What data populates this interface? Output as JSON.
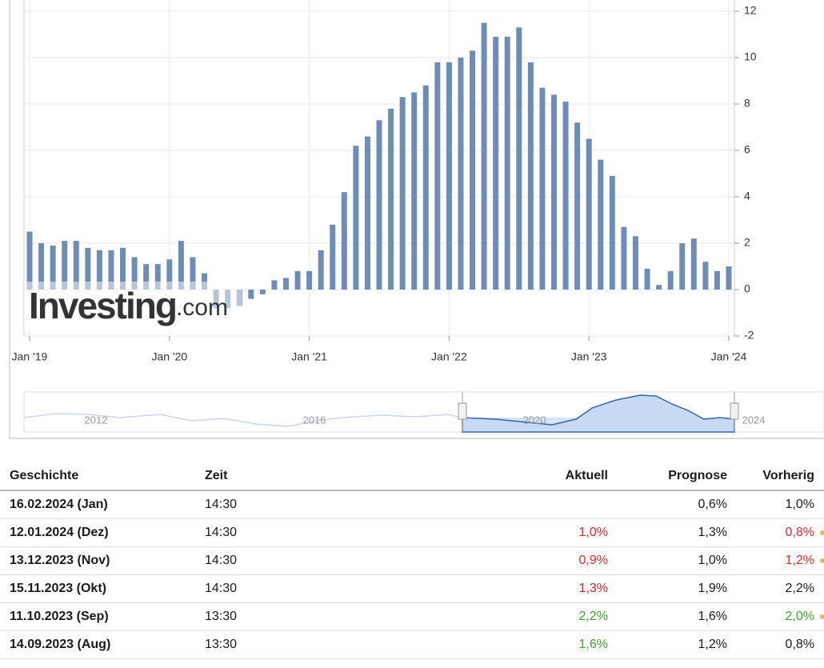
{
  "chart_data": {
    "type": "bar",
    "categories": [
      "Jan '19",
      null,
      null,
      null,
      null,
      null,
      null,
      null,
      null,
      null,
      null,
      null,
      "Jan '20",
      null,
      null,
      null,
      null,
      null,
      null,
      null,
      null,
      null,
      null,
      null,
      "Jan '21",
      null,
      null,
      null,
      null,
      null,
      null,
      null,
      null,
      null,
      null,
      null,
      "Jan '22",
      null,
      null,
      null,
      null,
      null,
      null,
      null,
      null,
      null,
      null,
      null,
      "Jan '23",
      null,
      null,
      null,
      null,
      null,
      null,
      null,
      null,
      null,
      null,
      null,
      "Jan '24"
    ],
    "values": [
      2.5,
      2.0,
      1.9,
      2.1,
      2.1,
      1.8,
      1.7,
      1.7,
      1.8,
      1.4,
      1.1,
      1.1,
      1.3,
      2.1,
      1.4,
      0.7,
      -0.8,
      -0.8,
      -0.7,
      -0.4,
      -0.2,
      0.4,
      0.5,
      0.8,
      0.8,
      1.7,
      2.8,
      4.2,
      6.2,
      6.6,
      7.3,
      7.8,
      8.3,
      8.5,
      8.8,
      9.8,
      9.8,
      10.0,
      10.3,
      11.5,
      10.9,
      10.9,
      11.3,
      9.8,
      8.7,
      8.4,
      8.1,
      7.2,
      6.5,
      5.6,
      4.9,
      2.7,
      2.3,
      0.9,
      0.2,
      0.8,
      2.0,
      2.2,
      1.2,
      0.8,
      1.0
    ],
    "color": "#6f8cb8",
    "ylim": [
      -2,
      12
    ],
    "yticks": [
      -2,
      0,
      2,
      4,
      6,
      8,
      10,
      12
    ],
    "grid": true,
    "logo": {
      "main": "Investing",
      "suffix": ".com"
    },
    "navigator_labels": [
      "2012",
      "2016",
      "2020",
      "2024"
    ]
  },
  "table": {
    "header": [
      "Geschichte",
      "Zeit",
      "Aktuell",
      "Prognose",
      "Vorherig"
    ],
    "rows": [
      {
        "date": "16.02.2024 (Jan)",
        "time": "14:30",
        "actual": "",
        "actual_color": "black",
        "forecast": "0,6%",
        "previous": "1,0%",
        "previous_color": "black",
        "dot": false
      },
      {
        "date": "12.01.2024 (Dez)",
        "time": "14:30",
        "actual": "1,0%",
        "actual_color": "red",
        "forecast": "1,3%",
        "previous": "0,8%",
        "previous_color": "red",
        "dot": true
      },
      {
        "date": "13.12.2023 (Nov)",
        "time": "14:30",
        "actual": "0,9%",
        "actual_color": "red",
        "forecast": "1,0%",
        "previous": "1,2%",
        "previous_color": "red",
        "dot": true
      },
      {
        "date": "15.11.2023 (Okt)",
        "time": "14:30",
        "actual": "1,3%",
        "actual_color": "red",
        "forecast": "1,9%",
        "previous": "2,2%",
        "previous_color": "black",
        "dot": false
      },
      {
        "date": "11.10.2023 (Sep)",
        "time": "13:30",
        "actual": "2,2%",
        "actual_color": "green",
        "forecast": "1,6%",
        "previous": "2,0%",
        "previous_color": "green",
        "dot": true
      },
      {
        "date": "14.09.2023 (Aug)",
        "time": "13:30",
        "actual": "1,6%",
        "actual_color": "green",
        "forecast": "1,2%",
        "previous": "0,8%",
        "previous_color": "black",
        "dot": false
      }
    ]
  }
}
